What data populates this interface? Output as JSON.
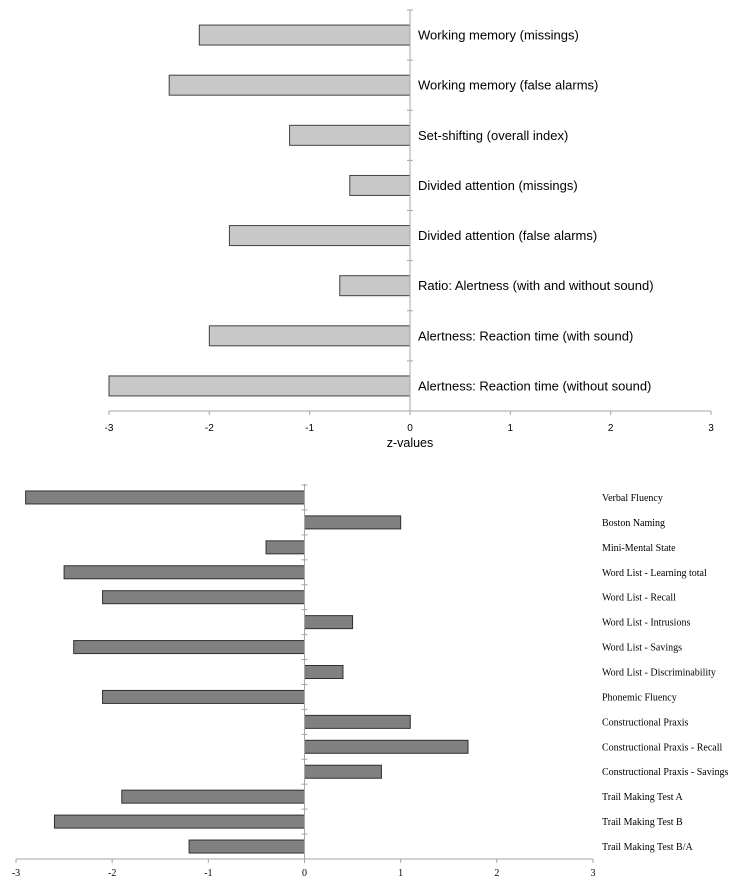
{
  "chart_data": [
    {
      "type": "bar",
      "orientation": "horizontal",
      "categories": [
        "Working memory (missings)",
        "Working memory (false alarms)",
        "Set-shifting (overall index)",
        "Divided attention (missings)",
        "Divided attention (false alarms)",
        "Ratio: Alertness  (with and without sound)",
        "Alertness: Reaction time (with sound)",
        "Alertness: Reaction time (without sound)"
      ],
      "values": [
        -2.1,
        -2.4,
        -1.2,
        -0.6,
        -1.8,
        -0.7,
        -2.0,
        -3.0
      ],
      "xlabel": "z-values",
      "xlim": [
        -3,
        3
      ],
      "xticks": [
        -3,
        -2,
        -1,
        0,
        1,
        2,
        3
      ],
      "grid": false,
      "colors": {
        "bar": "#c8c8c8",
        "edge": "#404040",
        "axis": "#a6a6a6"
      }
    },
    {
      "type": "bar",
      "orientation": "horizontal",
      "categories": [
        "Verbal Fluency",
        "Boston Naming",
        "Mini-Mental State",
        "Word List - Learning total",
        "Word List - Recall",
        "Word List - Intrusions",
        "Word List - Savings",
        "Word List - Discriminability",
        "Phonemic Fluency",
        "Constructional Praxis",
        "Constructional Praxis - Recall",
        "Constructional Praxis - Savings",
        "Trail Making Test A",
        "Trail Making Test B",
        "Trail Making Test B/A"
      ],
      "values": [
        -2.9,
        1.0,
        -0.4,
        -2.5,
        -2.1,
        0.5,
        -2.4,
        0.4,
        -2.1,
        1.1,
        1.7,
        0.8,
        -1.9,
        -2.6,
        -1.2
      ],
      "xlim": [
        -3,
        3
      ],
      "xticks": [
        -3,
        -2,
        -1,
        0,
        1,
        2,
        3
      ],
      "grid": false,
      "colors": {
        "bar": "#808080",
        "edge": "#303030",
        "axis": "#a6a6a6"
      }
    }
  ]
}
